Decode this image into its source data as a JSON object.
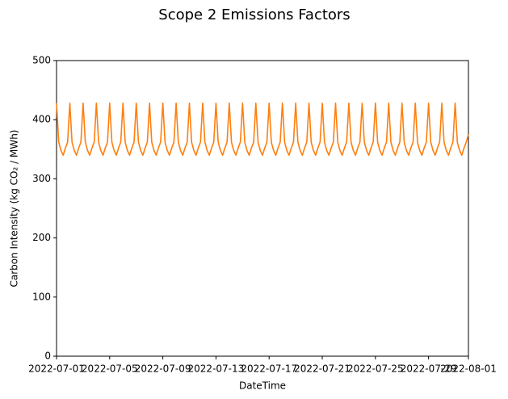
{
  "chart_data": {
    "type": "line",
    "title": "Scope 2 Emissions Factors",
    "x_label": "DateTime",
    "y_label": "Carbon Intensity (kg CO₂ / MWh)",
    "xlim": [
      "2022-07-01",
      "2022-08-01"
    ],
    "xticks": [
      "2022-07-01",
      "2022-07-05",
      "2022-07-09",
      "2022-07-13",
      "2022-07-17",
      "2022-07-21",
      "2022-07-25",
      "2022-07-29",
      "2022-08-01"
    ],
    "ylim": [
      0,
      500
    ],
    "yticks": [
      0,
      100,
      200,
      300,
      400,
      500
    ],
    "series": [
      {
        "color": "#ff7f0e",
        "x": [
          "2022-07-01 00:00",
          "2022-07-01 04:00",
          "2022-07-01 08:00",
          "2022-07-01 12:00",
          "2022-07-01 16:00",
          "2022-07-01 20:00",
          "2022-07-02 00:00",
          "2022-07-02 04:00",
          "2022-07-02 08:00",
          "2022-07-02 12:00",
          "2022-07-02 16:00",
          "2022-07-02 20:00",
          "2022-07-03 00:00",
          "2022-07-03 04:00",
          "2022-07-03 08:00",
          "2022-07-03 12:00",
          "2022-07-03 16:00",
          "2022-07-03 20:00",
          "2022-07-04 00:00",
          "2022-07-04 04:00",
          "2022-07-04 08:00",
          "2022-07-04 12:00",
          "2022-07-04 16:00",
          "2022-07-04 20:00",
          "2022-07-05 00:00",
          "2022-07-05 04:00",
          "2022-07-05 08:00",
          "2022-07-05 12:00",
          "2022-07-05 16:00",
          "2022-07-05 20:00",
          "2022-07-06 00:00",
          "2022-07-06 04:00",
          "2022-07-06 08:00",
          "2022-07-06 12:00",
          "2022-07-06 16:00",
          "2022-07-06 20:00",
          "2022-07-07 00:00",
          "2022-07-07 04:00",
          "2022-07-07 08:00",
          "2022-07-07 12:00",
          "2022-07-07 16:00",
          "2022-07-07 20:00",
          "2022-07-08 00:00",
          "2022-07-08 04:00",
          "2022-07-08 08:00",
          "2022-07-08 12:00",
          "2022-07-08 16:00",
          "2022-07-08 20:00",
          "2022-07-09 00:00",
          "2022-07-09 04:00",
          "2022-07-09 08:00",
          "2022-07-09 12:00",
          "2022-07-09 16:00",
          "2022-07-09 20:00",
          "2022-07-10 00:00",
          "2022-07-10 04:00",
          "2022-07-10 08:00",
          "2022-07-10 12:00",
          "2022-07-10 16:00",
          "2022-07-10 20:00",
          "2022-07-11 00:00",
          "2022-07-11 04:00",
          "2022-07-11 08:00",
          "2022-07-11 12:00",
          "2022-07-11 16:00",
          "2022-07-11 20:00",
          "2022-07-12 00:00",
          "2022-07-12 04:00",
          "2022-07-12 08:00",
          "2022-07-12 12:00",
          "2022-07-12 16:00",
          "2022-07-12 20:00",
          "2022-07-13 00:00",
          "2022-07-13 04:00",
          "2022-07-13 08:00",
          "2022-07-13 12:00",
          "2022-07-13 16:00",
          "2022-07-13 20:00",
          "2022-07-14 00:00",
          "2022-07-14 04:00",
          "2022-07-14 08:00",
          "2022-07-14 12:00",
          "2022-07-14 16:00",
          "2022-07-14 20:00",
          "2022-07-15 00:00",
          "2022-07-15 04:00",
          "2022-07-15 08:00",
          "2022-07-15 12:00",
          "2022-07-15 16:00",
          "2022-07-15 20:00",
          "2022-07-16 00:00",
          "2022-07-16 04:00",
          "2022-07-16 08:00",
          "2022-07-16 12:00",
          "2022-07-16 16:00",
          "2022-07-16 20:00",
          "2022-07-17 00:00",
          "2022-07-17 04:00",
          "2022-07-17 08:00",
          "2022-07-17 12:00",
          "2022-07-17 16:00",
          "2022-07-17 20:00",
          "2022-07-18 00:00",
          "2022-07-18 04:00",
          "2022-07-18 08:00",
          "2022-07-18 12:00",
          "2022-07-18 16:00",
          "2022-07-18 20:00",
          "2022-07-19 00:00",
          "2022-07-19 04:00",
          "2022-07-19 08:00",
          "2022-07-19 12:00",
          "2022-07-19 16:00",
          "2022-07-19 20:00",
          "2022-07-20 00:00",
          "2022-07-20 04:00",
          "2022-07-20 08:00",
          "2022-07-20 12:00",
          "2022-07-20 16:00",
          "2022-07-20 20:00",
          "2022-07-21 00:00",
          "2022-07-21 04:00",
          "2022-07-21 08:00",
          "2022-07-21 12:00",
          "2022-07-21 16:00",
          "2022-07-21 20:00",
          "2022-07-22 00:00",
          "2022-07-22 04:00",
          "2022-07-22 08:00",
          "2022-07-22 12:00",
          "2022-07-22 16:00",
          "2022-07-22 20:00",
          "2022-07-23 00:00",
          "2022-07-23 04:00",
          "2022-07-23 08:00",
          "2022-07-23 12:00",
          "2022-07-23 16:00",
          "2022-07-23 20:00",
          "2022-07-24 00:00",
          "2022-07-24 04:00",
          "2022-07-24 08:00",
          "2022-07-24 12:00",
          "2022-07-24 16:00",
          "2022-07-24 20:00",
          "2022-07-25 00:00",
          "2022-07-25 04:00",
          "2022-07-25 08:00",
          "2022-07-25 12:00",
          "2022-07-25 16:00",
          "2022-07-25 20:00",
          "2022-07-26 00:00",
          "2022-07-26 04:00",
          "2022-07-26 08:00",
          "2022-07-26 12:00",
          "2022-07-26 16:00",
          "2022-07-26 20:00",
          "2022-07-27 00:00",
          "2022-07-27 04:00",
          "2022-07-27 08:00",
          "2022-07-27 12:00",
          "2022-07-27 16:00",
          "2022-07-27 20:00",
          "2022-07-28 00:00",
          "2022-07-28 04:00",
          "2022-07-28 08:00",
          "2022-07-28 12:00",
          "2022-07-28 16:00",
          "2022-07-28 20:00",
          "2022-07-29 00:00",
          "2022-07-29 04:00",
          "2022-07-29 08:00",
          "2022-07-29 12:00",
          "2022-07-29 16:00",
          "2022-07-29 20:00",
          "2022-07-30 00:00",
          "2022-07-30 04:00",
          "2022-07-30 08:00",
          "2022-07-30 12:00",
          "2022-07-30 16:00",
          "2022-07-30 20:00",
          "2022-07-31 00:00",
          "2022-07-31 04:00",
          "2022-07-31 08:00",
          "2022-07-31 12:00",
          "2022-07-31 16:00",
          "2022-07-31 20:00",
          "2022-08-01 00:00"
        ],
        "values": [
          428,
          362,
          348,
          340,
          352,
          362,
          428,
          362,
          348,
          340,
          352,
          362,
          428,
          362,
          348,
          340,
          352,
          362,
          428,
          362,
          348,
          340,
          352,
          362,
          428,
          362,
          348,
          340,
          352,
          362,
          428,
          362,
          348,
          340,
          352,
          362,
          428,
          362,
          348,
          340,
          352,
          362,
          428,
          362,
          348,
          340,
          352,
          362,
          428,
          362,
          348,
          340,
          352,
          362,
          428,
          362,
          348,
          340,
          352,
          362,
          428,
          362,
          348,
          340,
          352,
          362,
          428,
          362,
          348,
          340,
          352,
          362,
          428,
          362,
          348,
          340,
          352,
          362,
          428,
          362,
          348,
          340,
          352,
          362,
          428,
          362,
          348,
          340,
          352,
          362,
          428,
          362,
          348,
          340,
          352,
          362,
          428,
          362,
          348,
          340,
          352,
          362,
          428,
          362,
          348,
          340,
          352,
          362,
          428,
          362,
          348,
          340,
          352,
          362,
          428,
          362,
          348,
          340,
          352,
          362,
          428,
          362,
          348,
          340,
          352,
          362,
          428,
          362,
          348,
          340,
          352,
          362,
          428,
          362,
          348,
          340,
          352,
          362,
          428,
          362,
          348,
          340,
          352,
          362,
          428,
          362,
          348,
          340,
          352,
          362,
          428,
          362,
          348,
          340,
          352,
          362,
          428,
          362,
          348,
          340,
          352,
          362,
          428,
          362,
          348,
          340,
          352,
          362,
          428,
          362,
          348,
          340,
          352,
          362,
          428,
          362,
          348,
          340,
          352,
          362,
          428,
          362,
          348,
          340,
          352,
          362,
          375
        ]
      }
    ]
  }
}
